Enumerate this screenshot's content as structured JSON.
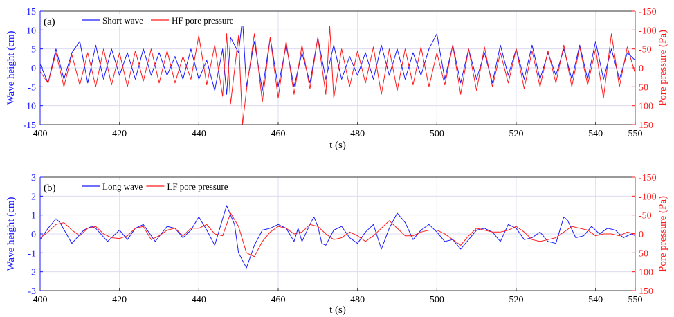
{
  "colors": {
    "left": "#1a1aff",
    "right": "#ff1a1a",
    "grid": "#dcdcf0",
    "axis": "#333333"
  },
  "chart_data": [
    {
      "type": "line",
      "panel_label": "(a)",
      "xlabel": "t (s)",
      "ylabel_left": "Wave height (cm)",
      "ylabel_right": "Pore pressure (Pa)",
      "xlim": [
        400,
        550
      ],
      "ylim_left": [
        -15,
        15
      ],
      "ylim_right": [
        150,
        -150
      ],
      "right_axis_reversed": true,
      "x_ticks": [
        "400",
        "420",
        "440",
        "460",
        "480",
        "500",
        "520",
        "540",
        "550"
      ],
      "y_ticks_left": [
        "15",
        "10",
        "5",
        "0",
        "-5",
        "-10",
        "-15"
      ],
      "y_ticks_right": [
        "-150",
        "-100",
        "-50",
        "0",
        "50",
        "100",
        "150"
      ],
      "grid": true,
      "legend_placement": "top-left",
      "series": [
        {
          "name": "Short wave",
          "axis": "left",
          "color": "#1a1aff",
          "x": [
            400,
            402,
            404,
            406,
            408,
            410,
            412,
            414,
            416,
            418,
            420,
            422,
            424,
            426,
            428,
            430,
            432,
            434,
            436,
            438,
            440,
            442,
            444,
            446,
            447,
            448,
            450,
            451,
            452,
            454,
            456,
            458,
            460,
            462,
            464,
            466,
            468,
            470,
            472,
            474,
            476,
            478,
            480,
            482,
            484,
            486,
            488,
            490,
            492,
            494,
            496,
            498,
            500,
            502,
            504,
            506,
            508,
            510,
            512,
            514,
            516,
            518,
            520,
            522,
            524,
            526,
            528,
            530,
            532,
            534,
            536,
            538,
            540,
            542,
            544,
            546,
            548,
            550
          ],
          "values": [
            1,
            -4,
            5,
            -3,
            4,
            7,
            -4,
            6,
            -3,
            5,
            -2,
            4,
            -3,
            5,
            -2,
            4,
            -2,
            3,
            -3,
            5,
            -3,
            2,
            -6,
            5,
            -7,
            8,
            4,
            13,
            -5,
            7,
            -6,
            8,
            -5,
            6,
            -5,
            4,
            -4,
            8,
            -3,
            6,
            -3,
            3,
            -2,
            4,
            -3,
            6,
            -2,
            5,
            -3,
            4,
            -2,
            5,
            9,
            -3,
            6,
            -4,
            5,
            -3,
            4,
            -4,
            6,
            -2,
            5,
            -3,
            6,
            -3,
            4,
            -2,
            5,
            -3,
            6,
            -3,
            7,
            -3,
            5,
            -3,
            4,
            2
          ]
        },
        {
          "name": "HF pore pressure",
          "axis": "right",
          "color": "#ff1a1a",
          "x": [
            400,
            402,
            404,
            406,
            408,
            410,
            412,
            414,
            416,
            418,
            420,
            422,
            424,
            426,
            428,
            430,
            432,
            434,
            436,
            438,
            440,
            442,
            444,
            446,
            447,
            448,
            450,
            451,
            452,
            454,
            456,
            458,
            460,
            462,
            464,
            466,
            468,
            470,
            472,
            473,
            474,
            476,
            478,
            480,
            482,
            484,
            486,
            488,
            490,
            492,
            494,
            496,
            498,
            500,
            502,
            504,
            506,
            508,
            510,
            512,
            514,
            516,
            518,
            520,
            522,
            524,
            526,
            528,
            530,
            532,
            534,
            536,
            538,
            540,
            542,
            544,
            546,
            548,
            550
          ],
          "values": [
            10,
            40,
            -40,
            50,
            -35,
            45,
            -40,
            50,
            -50,
            45,
            -40,
            50,
            -45,
            35,
            -50,
            40,
            -45,
            40,
            -30,
            30,
            -85,
            45,
            -60,
            75,
            -90,
            95,
            -85,
            160,
            60,
            -90,
            90,
            -80,
            80,
            -70,
            70,
            -60,
            55,
            -80,
            70,
            -110,
            80,
            -50,
            50,
            -45,
            40,
            -55,
            70,
            -50,
            60,
            -50,
            45,
            -55,
            50,
            -40,
            45,
            -60,
            70,
            -50,
            60,
            -55,
            50,
            -40,
            40,
            -50,
            55,
            -45,
            50,
            -45,
            40,
            -60,
            50,
            -55,
            45,
            -50,
            80,
            -90,
            50,
            -55,
            15
          ]
        }
      ]
    },
    {
      "type": "line",
      "panel_label": "(b)",
      "xlabel": "t (s)",
      "ylabel_left": "Wave height (cm)",
      "ylabel_right": "Pore pressure (Pa)",
      "xlim": [
        400,
        550
      ],
      "ylim_left": [
        -3,
        3
      ],
      "ylim_right": [
        150,
        -150
      ],
      "right_axis_reversed": true,
      "x_ticks": [
        "400",
        "420",
        "440",
        "460",
        "480",
        "500",
        "520",
        "540",
        "550"
      ],
      "y_ticks_left": [
        "3",
        "2",
        "1",
        "0",
        "-1",
        "-2",
        "-3"
      ],
      "y_ticks_right": [
        "-150",
        "-100",
        "-50",
        "0",
        "50",
        "100",
        "150"
      ],
      "grid": true,
      "legend_placement": "top-left",
      "series": [
        {
          "name": "Long wave",
          "axis": "left",
          "color": "#1a1aff",
          "x": [
            400,
            402,
            404,
            405,
            408,
            411,
            413,
            414,
            417,
            420,
            422,
            424,
            426,
            429,
            432,
            434,
            436,
            438,
            440,
            442,
            444,
            447,
            449,
            450,
            452,
            454,
            456,
            458,
            460,
            462,
            464,
            465,
            466,
            468,
            469,
            470,
            471,
            472,
            474,
            476,
            478,
            480,
            482,
            484,
            486,
            488,
            490,
            492,
            494,
            496,
            498,
            500,
            502,
            504,
            506,
            508,
            510,
            512,
            514,
            516,
            518,
            520,
            522,
            524,
            526,
            528,
            530,
            532,
            533,
            535,
            537,
            539,
            541,
            543,
            545,
            547,
            549,
            550
          ],
          "values": [
            -0.3,
            0.3,
            0.8,
            0.6,
            -0.5,
            0.2,
            0.4,
            0.3,
            -0.4,
            0.2,
            -0.3,
            0.3,
            0.5,
            -0.4,
            0.4,
            0.3,
            -0.2,
            0.2,
            0.9,
            0.2,
            -0.6,
            1.5,
            0.5,
            -1.0,
            -1.8,
            -0.6,
            0.2,
            0.3,
            0.5,
            0.3,
            -0.4,
            0.3,
            -0.4,
            0.5,
            0.9,
            0.4,
            -0.5,
            -0.6,
            0.2,
            0.4,
            -0.2,
            -0.5,
            0.1,
            0.5,
            -0.8,
            0.3,
            1.1,
            0.6,
            -0.3,
            0.2,
            0.5,
            0.1,
            -0.4,
            -0.3,
            -0.8,
            -0.3,
            0.2,
            0.3,
            0.1,
            -0.4,
            0.5,
            0.3,
            -0.3,
            -0.2,
            0.1,
            -0.4,
            -0.5,
            0.9,
            0.7,
            -0.2,
            -0.1,
            0.4,
            0.0,
            0.3,
            0.2,
            -0.2,
            0.0,
            -0.1
          ],
          "_": ""
        },
        {
          "name": "LF pore pressure",
          "axis": "right",
          "color": "#ff1a1a",
          "x": [
            400,
            402,
            404,
            406,
            408,
            410,
            412,
            414,
            416,
            418,
            420,
            422,
            424,
            426,
            428,
            430,
            432,
            434,
            436,
            438,
            440,
            442,
            444,
            446,
            448,
            450,
            452,
            454,
            456,
            458,
            460,
            462,
            464,
            466,
            468,
            470,
            472,
            474,
            476,
            478,
            480,
            482,
            484,
            486,
            488,
            490,
            492,
            494,
            496,
            498,
            500,
            502,
            504,
            506,
            508,
            510,
            512,
            514,
            516,
            518,
            520,
            522,
            524,
            526,
            528,
            530,
            532,
            534,
            536,
            538,
            540,
            542,
            544,
            546,
            548,
            550
          ],
          "values": [
            10,
            -5,
            -25,
            -30,
            -10,
            5,
            -15,
            -20,
            0,
            10,
            12,
            5,
            -15,
            -20,
            15,
            5,
            -10,
            -15,
            5,
            -15,
            -15,
            -25,
            0,
            5,
            -55,
            -20,
            50,
            60,
            20,
            -5,
            -20,
            -15,
            0,
            -5,
            -25,
            -20,
            0,
            15,
            10,
            -5,
            5,
            20,
            5,
            -15,
            -35,
            -15,
            5,
            5,
            -5,
            -10,
            -10,
            0,
            15,
            30,
            5,
            -15,
            -10,
            -5,
            -5,
            -10,
            -20,
            -5,
            15,
            20,
            15,
            10,
            -5,
            -20,
            -15,
            -10,
            5,
            0,
            0,
            5,
            -5,
            0
          ],
          "_": ""
        }
      ]
    }
  ]
}
